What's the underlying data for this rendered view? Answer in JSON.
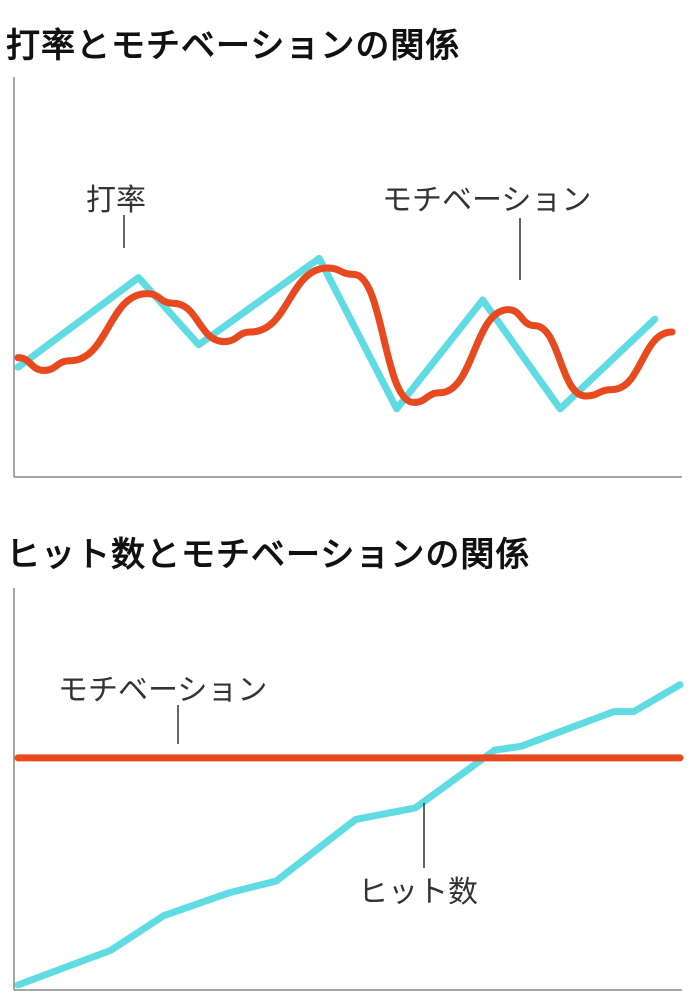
{
  "chart_data": [
    {
      "type": "line",
      "title": "打率とモチベーションの関係",
      "ylim": [
        0,
        100
      ],
      "grid": false,
      "x": [
        0,
        1,
        2,
        3,
        4,
        5,
        6,
        7,
        8
      ],
      "series": [
        {
          "name": "打率",
          "color": "#5fdce3",
          "values": [
            29,
            57,
            36,
            63,
            16,
            50,
            16,
            44,
            null
          ],
          "points": [
            [
              0,
              29
            ],
            [
              1.4,
              57
            ],
            [
              2.1,
              36
            ],
            [
              3.5,
              63
            ],
            [
              4.4,
              16
            ],
            [
              5.4,
              50
            ],
            [
              6.3,
              16
            ],
            [
              7.4,
              44
            ]
          ]
        },
        {
          "name": "モチベーション",
          "color": "#e8491e",
          "points": [
            [
              0,
              32
            ],
            [
              0.3,
              28
            ],
            [
              0.6,
              31
            ],
            [
              1.5,
              52
            ],
            [
              1.8,
              49
            ],
            [
              2.4,
              37
            ],
            [
              2.7,
              40
            ],
            [
              3.6,
              60
            ],
            [
              3.9,
              58
            ],
            [
              4.6,
              18
            ],
            [
              4.9,
              21
            ],
            [
              5.7,
              47
            ],
            [
              6.0,
              42
            ],
            [
              6.6,
              20
            ],
            [
              6.9,
              22
            ],
            [
              7.6,
              40
            ]
          ]
        }
      ]
    },
    {
      "type": "line",
      "title": "ヒット数とモチベーションの関係",
      "ylim": [
        0,
        100
      ],
      "grid": false,
      "series": [
        {
          "name": "モチベーション",
          "color": "#e8491e",
          "points": [
            [
              0,
              59
            ],
            [
              10,
              59
            ]
          ]
        },
        {
          "name": "ヒット数",
          "color": "#5fdce3",
          "points": [
            [
              0,
              0
            ],
            [
              1.4,
              9
            ],
            [
              2.2,
              18
            ],
            [
              3.2,
              24
            ],
            [
              3.9,
              27
            ],
            [
              5.1,
              43
            ],
            [
              6.0,
              46
            ],
            [
              7.2,
              61
            ],
            [
              7.6,
              62
            ],
            [
              9.0,
              71
            ],
            [
              9.3,
              71
            ],
            [
              10,
              78
            ]
          ]
        }
      ]
    }
  ],
  "annotations": {
    "chart1_batting": "打率",
    "chart1_motivation": "モチベーション",
    "chart2_motivation": "モチベーション",
    "chart2_hits": "ヒット数"
  }
}
